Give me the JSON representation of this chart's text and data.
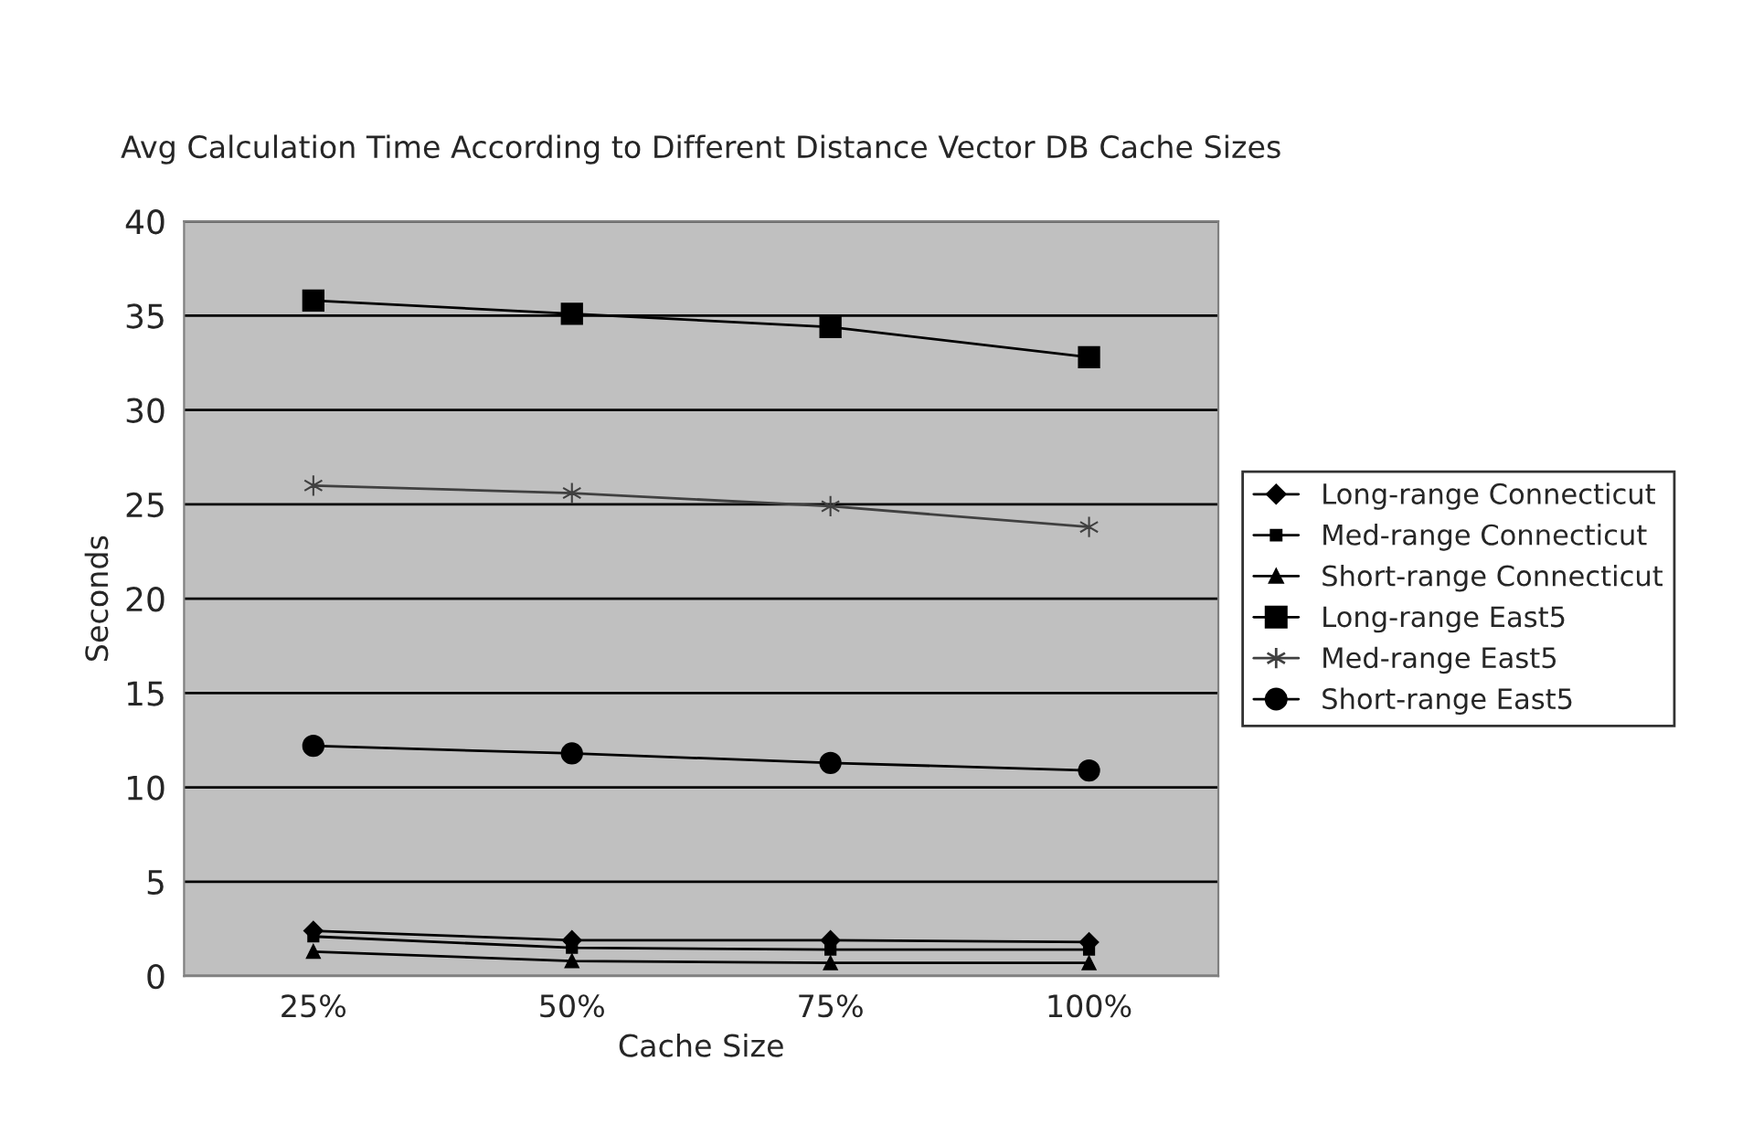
{
  "chart_data": {
    "type": "line",
    "title": "Avg Calculation Time According to Different Distance Vector DB Cache Sizes",
    "xlabel": "Cache Size",
    "ylabel": "Seconds",
    "categories": [
      "25%",
      "50%",
      "75%",
      "100%"
    ],
    "series": [
      {
        "name": "Long-range Connecticut",
        "color": "#000000",
        "marker": "diamond",
        "values": [
          2.4,
          1.9,
          1.9,
          1.8
        ]
      },
      {
        "name": "Med-range Connecticut",
        "color": "#000000",
        "marker": "square",
        "values": [
          2.1,
          1.5,
          1.4,
          1.4
        ]
      },
      {
        "name": "Short-range Connecticut",
        "color": "#000000",
        "marker": "triangle",
        "values": [
          1.3,
          0.8,
          0.7,
          0.7
        ]
      },
      {
        "name": "Long-range East5",
        "color": "#000000",
        "marker": "square",
        "values": [
          35.8,
          35.1,
          34.4,
          32.8
        ]
      },
      {
        "name": "Med-range East5",
        "color": "#404040",
        "marker": "cross",
        "values": [
          26.0,
          25.6,
          24.9,
          23.8
        ]
      },
      {
        "name": "Short-range East5",
        "color": "#000000",
        "marker": "circle",
        "values": [
          12.2,
          11.8,
          11.3,
          10.9
        ]
      }
    ],
    "ylim": [
      0,
      40
    ],
    "yticks": [
      0,
      5,
      10,
      15,
      20,
      25,
      30,
      35,
      40
    ],
    "grid": "y",
    "legend": "right",
    "line_style": "solid"
  }
}
